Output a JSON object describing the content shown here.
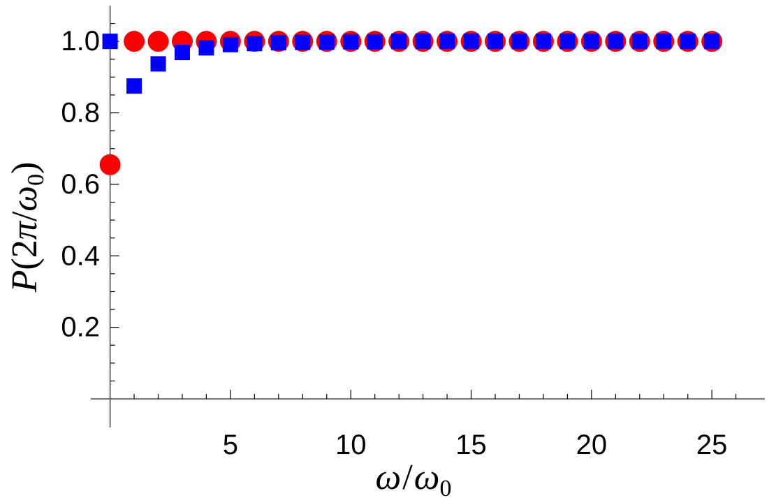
{
  "chart_data": {
    "type": "scatter",
    "title": "",
    "xlabel_parts": [
      "ω",
      "/",
      "ω",
      "0"
    ],
    "ylabel_parts": [
      "P",
      "(2",
      "π",
      "/",
      "ω",
      "0",
      ")"
    ],
    "xlim": [
      -0.8,
      27.2
    ],
    "ylim": [
      -0.08,
      1.1
    ],
    "x_ticks": [
      5,
      10,
      15,
      20,
      25
    ],
    "x_tick_labels": [
      "5",
      "10",
      "15",
      "20",
      "25"
    ],
    "y_ticks": [
      0.2,
      0.4,
      0.6,
      0.8,
      1.0
    ],
    "y_tick_labels": [
      "0.2",
      "0.4",
      "0.6",
      "0.8",
      "1.0"
    ],
    "grid": false,
    "series": [
      {
        "name": "circles",
        "marker": "circle",
        "color": "#ff0000",
        "x": [
          0,
          1,
          2,
          3,
          4,
          5,
          6,
          7,
          8,
          9,
          10,
          11,
          12,
          13,
          14,
          15,
          16,
          17,
          18,
          19,
          20,
          21,
          22,
          23,
          24,
          25
        ],
        "y": [
          0.655,
          1,
          1,
          1,
          1,
          1,
          1,
          1,
          1,
          1,
          1,
          1,
          1,
          1,
          1,
          1,
          1,
          1,
          1,
          1,
          1,
          1,
          1,
          1,
          1,
          1
        ]
      },
      {
        "name": "squares",
        "marker": "square",
        "color": "#0000ff",
        "x": [
          0,
          1,
          2,
          3,
          4,
          5,
          6,
          7,
          8,
          9,
          10,
          11,
          12,
          13,
          14,
          15,
          16,
          17,
          18,
          19,
          20,
          21,
          22,
          23,
          24,
          25
        ],
        "y": [
          1.0,
          0.875,
          0.937,
          0.969,
          0.982,
          0.991,
          0.994,
          0.996,
          0.997,
          0.998,
          0.999,
          0.999,
          1,
          1,
          1,
          1,
          1,
          1,
          1,
          1,
          1,
          1,
          1,
          1,
          1,
          1
        ]
      }
    ]
  }
}
